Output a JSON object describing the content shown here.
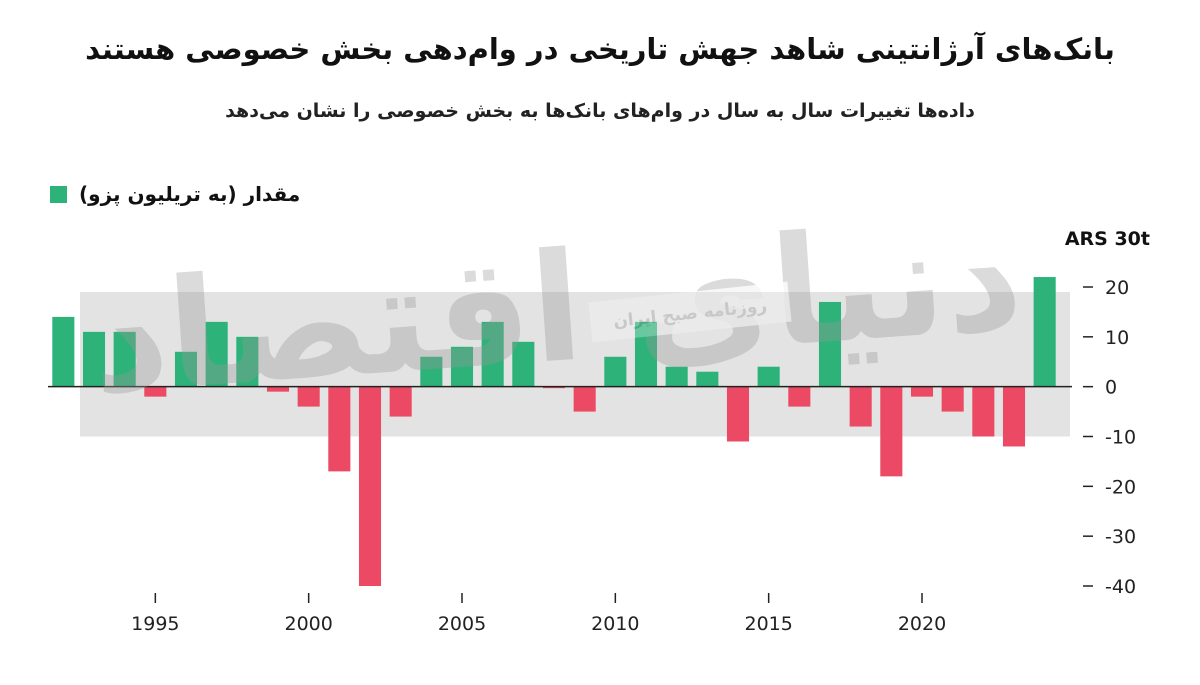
{
  "header": {
    "title": "بانک‌های آرژانتینی شاهد جهش تاریخی در وام‌دهی بخش خصوصی هستند",
    "subtitle": "داده‌ها تغییرات سال به سال در وام‌های بانک‌ها به بخش خصوصی را نشان می‌دهد"
  },
  "watermark": {
    "logo_text": "دنیای اقتصاد",
    "banner_text": "روزنامه صبح ایران"
  },
  "colors": {
    "positive": "#2db37a",
    "negative": "#ec4a64",
    "band": "#e3e3e3",
    "axis": "#222222"
  },
  "chart_data": {
    "type": "bar",
    "title": "بانک‌های آرژانتینی شاهد جهش تاریخی در وام‌دهی بخش خصوصی هستند",
    "subtitle": "داده‌ها تغییرات سال به سال در وام‌های بانک‌ها به بخش خصوصی را نشان می‌دهد",
    "unit_label": "ARS 30t",
    "legend": {
      "label": "مقدار (به تریلیون پزو)",
      "position": "top-left"
    },
    "x": [
      1992,
      1993,
      1994,
      1995,
      1996,
      1997,
      1998,
      1999,
      2000,
      2001,
      2002,
      2003,
      2004,
      2005,
      2006,
      2007,
      2008,
      2009,
      2010,
      2011,
      2012,
      2013,
      2014,
      2015,
      2016,
      2017,
      2018,
      2019,
      2020,
      2021,
      2022,
      2023,
      2024
    ],
    "values": [
      14,
      11,
      11,
      -2,
      7,
      13,
      10,
      -1,
      -4,
      -17,
      -40,
      -6,
      6,
      8,
      13,
      9,
      -0.3,
      -5,
      6,
      13,
      4,
      3,
      -11,
      4,
      -4,
      17,
      -8,
      -18,
      -2,
      -5,
      -10,
      -12,
      22
    ],
    "x_ticks": [
      1995,
      2000,
      2005,
      2010,
      2015,
      2020
    ],
    "y_ticks": [
      20,
      10,
      0,
      -10,
      -20,
      -30,
      -40
    ],
    "ylim": [
      -40,
      30
    ],
    "highlight_band": [
      -10,
      19
    ],
    "y_axis_position": "right"
  }
}
